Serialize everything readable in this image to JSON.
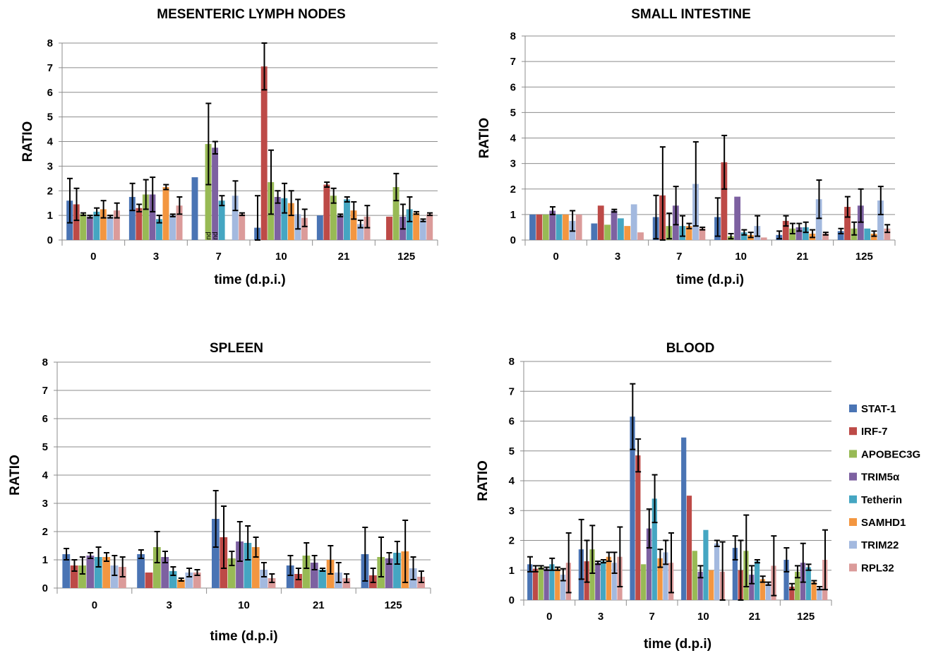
{
  "legend": {
    "items": [
      "STAT-1",
      "IRF-7",
      "APOBEC3G",
      "TRIM5α",
      "Tetherin",
      "SAMHD1",
      "TRIM22",
      "RPL32"
    ],
    "colors": [
      "#4a74b4",
      "#bd4a47",
      "#98ba55",
      "#7d61a1",
      "#45a6c2",
      "#f39640",
      "#a3b9df",
      "#db9b9a"
    ]
  },
  "chart_data": [
    {
      "type": "bar",
      "title": "MESENTERIC LYMPH NODES",
      "xlabel": "time (d.p.i.)",
      "ylabel": "RATIO",
      "ylim": [
        0,
        8
      ],
      "yticks": [
        "0",
        "1",
        "2",
        "3",
        "4",
        "5",
        "6",
        "7",
        "8"
      ],
      "grid": true,
      "categories": [
        "0",
        "3",
        "7",
        "10",
        "21",
        "125"
      ],
      "series": [
        {
          "name": "STAT-1",
          "values": [
            1.6,
            1.75,
            2.55,
            0.5,
            1.0,
            null
          ],
          "errors": [
            0.9,
            0.55,
            null,
            1.3,
            null,
            null
          ]
        },
        {
          "name": "IRF-7",
          "values": [
            1.45,
            1.3,
            null,
            7.05,
            2.25,
            0.95
          ],
          "errors": [
            0.65,
            0.15,
            null,
            0.95,
            0.1,
            null
          ]
        },
        {
          "name": "APOBEC3G",
          "values": [
            1.05,
            1.85,
            3.9,
            2.35,
            1.8,
            2.15
          ],
          "errors": [
            0.05,
            0.6,
            1.65,
            1.3,
            0.3,
            0.55
          ]
        },
        {
          "name": "TRIM5α",
          "values": [
            0.95,
            1.85,
            3.75,
            1.75,
            1.0,
            0.95
          ],
          "errors": [
            0.05,
            0.7,
            0.25,
            0.25,
            0.05,
            0.5
          ]
        },
        {
          "name": "Tetherin",
          "values": [
            1.15,
            0.85,
            1.6,
            1.7,
            1.65,
            1.25
          ],
          "errors": [
            0.15,
            0.15,
            0.2,
            0.6,
            0.1,
            0.5
          ]
        },
        {
          "name": "SAMHD1",
          "values": [
            1.25,
            2.15,
            null,
            1.5,
            1.2,
            1.1
          ],
          "errors": [
            0.35,
            0.1,
            null,
            0.5,
            0.35,
            0.05
          ]
        },
        {
          "name": "TRIM22",
          "values": [
            0.95,
            1.0,
            1.8,
            1.05,
            0.65,
            0.8
          ],
          "errors": [
            0.05,
            0.05,
            0.6,
            0.6,
            0.15,
            0.05
          ]
        },
        {
          "name": "RPL32",
          "values": [
            1.2,
            1.4,
            1.05,
            0.9,
            0.95,
            1.05
          ],
          "errors": [
            0.3,
            0.35,
            0.05,
            0.35,
            0.45,
            0.05
          ]
        }
      ],
      "annotations": [
        "nd",
        "nd"
      ]
    },
    {
      "type": "bar",
      "title": "SMALL INTESTINE",
      "xlabel": "time  (d.p.i)",
      "ylabel": "RATIO",
      "ylim": [
        0,
        8
      ],
      "yticks": [
        "0",
        "1",
        "2",
        "3",
        "4",
        "5",
        "6",
        "7",
        "8"
      ],
      "grid": true,
      "categories": [
        "0",
        "3",
        "7",
        "10",
        "21",
        "125"
      ],
      "series": [
        {
          "name": "STAT-1",
          "values": [
            1.0,
            0.65,
            0.9,
            0.9,
            0.2,
            0.35
          ],
          "errors": [
            null,
            null,
            0.85,
            0.75,
            0.15,
            0.1
          ]
        },
        {
          "name": "IRF-7",
          "values": [
            1.0,
            1.35,
            1.75,
            3.05,
            0.75,
            1.3
          ],
          "errors": [
            null,
            null,
            1.9,
            1.05,
            0.2,
            0.4
          ]
        },
        {
          "name": "APOBEC3G",
          "values": [
            1.0,
            0.6,
            0.55,
            0.15,
            0.45,
            0.45
          ],
          "errors": [
            null,
            null,
            0.5,
            0.1,
            0.2,
            0.25
          ]
        },
        {
          "name": "TRIM5α",
          "values": [
            1.15,
            1.15,
            1.35,
            1.7,
            0.5,
            1.35
          ],
          "errors": [
            0.15,
            0.05,
            0.75,
            null,
            0.15,
            0.65
          ]
        },
        {
          "name": "Tetherin",
          "values": [
            1.0,
            0.85,
            0.55,
            0.3,
            0.5,
            0.45
          ],
          "errors": [
            null,
            null,
            0.4,
            0.1,
            0.2,
            null
          ]
        },
        {
          "name": "SAMHD1",
          "values": [
            1.0,
            0.55,
            0.55,
            0.2,
            0.25,
            0.25
          ],
          "errors": [
            null,
            null,
            0.1,
            0.1,
            0.15,
            0.1
          ]
        },
        {
          "name": "TRIM22",
          "values": [
            0.75,
            1.4,
            2.2,
            0.55,
            1.6,
            1.55
          ],
          "errors": [
            0.4,
            null,
            1.65,
            0.4,
            0.75,
            0.55
          ]
        },
        {
          "name": "RPL32",
          "values": [
            1.0,
            0.3,
            0.45,
            0.1,
            0.25,
            0.45
          ],
          "errors": [
            null,
            null,
            0.05,
            null,
            0.05,
            0.15
          ]
        }
      ]
    },
    {
      "type": "bar",
      "title": "SPLEEN",
      "xlabel": "time (d.p.i)",
      "ylabel": "RATIO",
      "ylim": [
        0,
        8
      ],
      "yticks": [
        "0",
        "1",
        "2",
        "3",
        "4",
        "5",
        "6",
        "7",
        "8"
      ],
      "grid": true,
      "categories": [
        "0",
        "3",
        "10",
        "21",
        "125"
      ],
      "series": [
        {
          "name": "STAT-1",
          "values": [
            1.2,
            1.2,
            2.45,
            0.8,
            1.2
          ],
          "errors": [
            0.2,
            0.15,
            1.0,
            0.35,
            0.95
          ]
        },
        {
          "name": "IRF-7",
          "values": [
            0.8,
            0.55,
            1.8,
            0.5,
            0.45
          ],
          "errors": [
            0.2,
            null,
            1.1,
            0.2,
            0.25
          ]
        },
        {
          "name": "APOBEC3G",
          "values": [
            0.8,
            1.45,
            1.05,
            1.15,
            1.1
          ],
          "errors": [
            0.3,
            0.55,
            0.25,
            0.45,
            0.7
          ]
        },
        {
          "name": "TRIM5α",
          "values": [
            1.15,
            1.1,
            1.65,
            0.9,
            1.05
          ],
          "errors": [
            0.1,
            0.2,
            0.7,
            0.25,
            0.2
          ]
        },
        {
          "name": "Tetherin",
          "values": [
            1.1,
            0.6,
            1.6,
            0.65,
            1.25
          ],
          "errors": [
            0.35,
            0.15,
            0.6,
            0.05,
            0.4
          ]
        },
        {
          "name": "SAMHD1",
          "values": [
            1.1,
            0.3,
            1.45,
            1.0,
            1.3
          ],
          "errors": [
            0.15,
            0.05,
            0.35,
            0.5,
            1.1
          ]
        },
        {
          "name": "TRIM22",
          "values": [
            0.8,
            0.55,
            0.65,
            0.55,
            0.7
          ],
          "errors": [
            0.35,
            0.15,
            0.25,
            0.35,
            0.4
          ]
        },
        {
          "name": "RPL32",
          "values": [
            0.75,
            0.55,
            0.35,
            0.35,
            0.4
          ],
          "errors": [
            0.35,
            0.1,
            0.15,
            0.15,
            0.2
          ]
        }
      ]
    },
    {
      "type": "bar",
      "title": "BLOOD",
      "xlabel": "time (d.p.i)",
      "ylabel": "RATIO",
      "ylim": [
        0,
        8
      ],
      "yticks": [
        "0",
        "1",
        "2",
        "3",
        "4",
        "5",
        "6",
        "7",
        "8"
      ],
      "grid": true,
      "categories": [
        "0",
        "3",
        "7",
        "10",
        "21",
        "125"
      ],
      "series": [
        {
          "name": "STAT-1",
          "values": [
            1.2,
            1.7,
            6.15,
            5.45,
            1.75,
            1.35
          ],
          "errors": [
            0.25,
            1.0,
            1.1,
            null,
            0.4,
            0.4
          ]
        },
        {
          "name": "IRF-7",
          "values": [
            1.05,
            1.3,
            4.85,
            3.5,
            1.0,
            0.45
          ],
          "errors": [
            0.1,
            0.7,
            0.55,
            null,
            1.0,
            0.1
          ]
        },
        {
          "name": "APOBEC3G",
          "values": [
            1.1,
            1.7,
            1.2,
            1.65,
            1.65,
            0.95
          ],
          "errors": [
            0.05,
            0.8,
            null,
            null,
            1.2,
            0.2
          ]
        },
        {
          "name": "TRIM5α",
          "values": [
            1.05,
            1.25,
            2.4,
            0.95,
            0.85,
            1.25
          ],
          "errors": [
            0.05,
            0.05,
            0.65,
            0.2,
            0.3,
            0.65
          ]
        },
        {
          "name": "Tetherin",
          "values": [
            1.2,
            1.3,
            3.4,
            2.35,
            1.3,
            1.1
          ],
          "errors": [
            0.2,
            0.05,
            0.8,
            null,
            0.05,
            0.1
          ]
        },
        {
          "name": "SAMHD1",
          "values": [
            1.05,
            1.45,
            1.4,
            1.0,
            0.7,
            0.6
          ],
          "errors": [
            0.05,
            0.15,
            0.3,
            null,
            0.1,
            0.05
          ]
        },
        {
          "name": "TRIM22",
          "values": [
            0.85,
            1.25,
            1.6,
            1.9,
            0.55,
            0.4
          ],
          "errors": [
            0.2,
            0.35,
            0.4,
            0.1,
            0.05,
            0.05
          ]
        },
        {
          "name": "RPL32",
          "values": [
            1.25,
            1.45,
            1.25,
            0.95,
            1.15,
            1.35
          ],
          "errors": [
            1.0,
            1.0,
            1.0,
            1.0,
            1.0,
            1.0
          ]
        }
      ]
    }
  ]
}
